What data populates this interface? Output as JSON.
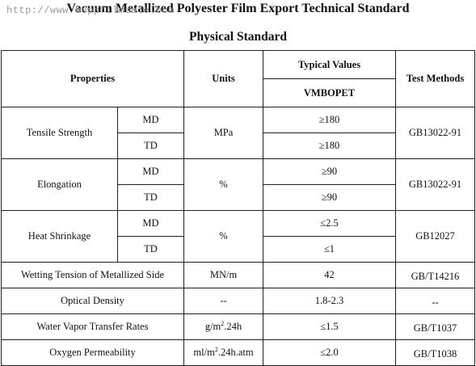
{
  "watermark": "http://www.boppfilmsale.com",
  "doc_title": "Vacuum Metallized Polyester Film Export Technical Standard",
  "section_title": "Physical Standard",
  "table": {
    "headers": {
      "properties": "Properties",
      "units": "Units",
      "typical_values": "Typical Values",
      "product": "VMBOPET",
      "test_methods": "Test Methods"
    },
    "tensile": {
      "name": "Tensile Strength",
      "dir1": "MD",
      "dir2": "TD",
      "unit": "MPa",
      "val1": "≥180",
      "val2": "≥180",
      "method": "GB13022-91"
    },
    "elongation": {
      "name": "Elongation",
      "dir1": "MD",
      "dir2": "TD",
      "unit": "%",
      "val1": "≥90",
      "val2": "≥90",
      "method": "GB13022-91"
    },
    "shrinkage": {
      "name": "Heat Shrinkage",
      "dir1": "MD",
      "dir2": "TD",
      "unit": "%",
      "val1": "≤2.5",
      "val2": "≤1",
      "method": "GB12027"
    },
    "wetting": {
      "name": "Wetting Tension of Metallized Side",
      "unit": "MN/m",
      "value": "42",
      "method": "GB/T14216"
    },
    "optical": {
      "name": "Optical Density",
      "unit": "--",
      "value": "1.8-2.3",
      "method": "--"
    },
    "water": {
      "name": "Water Vapor Transfer Rates",
      "unit_base": "g/m",
      "unit_sup": "2",
      "unit_rest": ".24h",
      "value": "≤1.5",
      "method": "GB/T1037"
    },
    "oxygen": {
      "name": "Oxygen Permeability",
      "unit_base": "ml/m",
      "unit_sup": "2",
      "unit_rest": ".24h.atm",
      "value": "≤2.0",
      "method": "GB/T1038"
    }
  }
}
